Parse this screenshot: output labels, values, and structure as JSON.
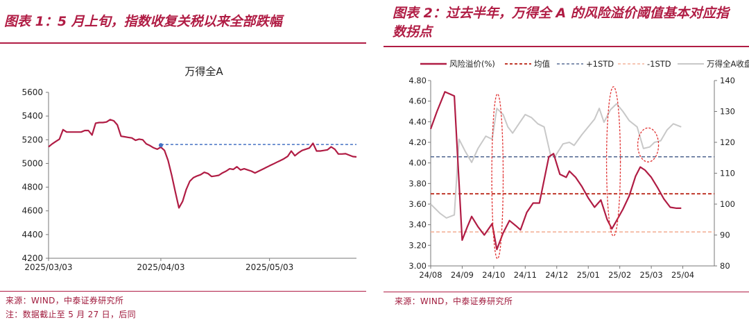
{
  "left": {
    "figure_title": "图表 1：5 月上旬，指数收复关税以来全部跌幅",
    "source": "来源：WIND，中泰证券研究所",
    "note": "注：数据截止至 5 月 27 日，后同",
    "colors": {
      "line": "#b01c44",
      "reference": "#4472c4",
      "accent": "#b01c44"
    }
  },
  "right": {
    "figure_title": "图表 2：过去半年，万得全 A 的风险溢价阈值基本对应指数拐点",
    "source": "来源：WIND，中泰证券研究所",
    "colors": {
      "risk": "#b01c44",
      "mean": "#c0392b",
      "plus_std": "#5a6f96",
      "minus_std": "#f4b39a",
      "index": "#c8c8c8",
      "ellipse": "#e03030"
    }
  },
  "chart_data": [
    {
      "type": "line",
      "title": "万得全A",
      "xlabel": "",
      "ylabel": "",
      "ylim": [
        4200,
        5600
      ],
      "y_ticks": [
        "4200",
        "4400",
        "4600",
        "4800",
        "5000",
        "5200",
        "5400",
        "5600"
      ],
      "x_ticks": [
        "2025/03/03",
        "2025/04/03",
        "2025/05/03"
      ],
      "x_tick_days": [
        0,
        31,
        61
      ],
      "xlim_days": [
        0,
        85
      ],
      "grid": false,
      "series": [
        {
          "values_by_day": [
            [
              0,
              5140
            ],
            [
              1,
              5165
            ],
            [
              2,
              5185
            ],
            [
              3,
              5205
            ],
            [
              4,
              5285
            ],
            [
              5,
              5265
            ],
            [
              6,
              5265
            ],
            [
              7,
              5265
            ],
            [
              8,
              5265
            ],
            [
              9,
              5265
            ],
            [
              10,
              5278
            ],
            [
              11,
              5278
            ],
            [
              12,
              5240
            ],
            [
              13,
              5340
            ],
            [
              14,
              5345
            ],
            [
              15,
              5345
            ],
            [
              16,
              5350
            ],
            [
              17,
              5370
            ],
            [
              18,
              5360
            ],
            [
              19,
              5325
            ],
            [
              20,
              5230
            ],
            [
              21,
              5225
            ],
            [
              22,
              5220
            ],
            [
              23,
              5215
            ],
            [
              24,
              5195
            ],
            [
              25,
              5205
            ],
            [
              26,
              5200
            ],
            [
              27,
              5165
            ],
            [
              28,
              5150
            ],
            [
              29,
              5132
            ],
            [
              30,
              5120
            ],
            [
              31,
              5138
            ],
            [
              32,
              5110
            ],
            [
              33,
              5025
            ],
            [
              34,
              4900
            ],
            [
              35,
              4760
            ],
            [
              36,
              4625
            ],
            [
              37,
              4680
            ],
            [
              38,
              4780
            ],
            [
              39,
              4850
            ],
            [
              40,
              4880
            ],
            [
              41,
              4895
            ],
            [
              42,
              4905
            ],
            [
              43,
              4925
            ],
            [
              44,
              4915
            ],
            [
              45,
              4890
            ],
            [
              46,
              4895
            ],
            [
              47,
              4900
            ],
            [
              48,
              4920
            ],
            [
              49,
              4935
            ],
            [
              50,
              4955
            ],
            [
              51,
              4950
            ],
            [
              52,
              4972
            ],
            [
              53,
              4945
            ],
            [
              54,
              4955
            ],
            [
              55,
              4945
            ],
            [
              56,
              4935
            ],
            [
              57,
              4920
            ],
            [
              58,
              4935
            ],
            [
              59,
              4950
            ],
            [
              60,
              4965
            ],
            [
              61,
              4980
            ],
            [
              62,
              4995
            ],
            [
              63,
              5010
            ],
            [
              64,
              5025
            ],
            [
              65,
              5040
            ],
            [
              66,
              5060
            ],
            [
              67,
              5105
            ],
            [
              68,
              5065
            ],
            [
              69,
              5090
            ],
            [
              70,
              5110
            ],
            [
              71,
              5120
            ],
            [
              72,
              5130
            ],
            [
              73,
              5170
            ],
            [
              74,
              5105
            ],
            [
              75,
              5105
            ],
            [
              76,
              5110
            ],
            [
              77,
              5115
            ],
            [
              78,
              5140
            ],
            [
              79,
              5120
            ],
            [
              80,
              5080
            ],
            [
              81,
              5080
            ],
            [
              82,
              5082
            ],
            [
              83,
              5070
            ],
            [
              84,
              5058
            ],
            [
              85,
              5055
            ]
          ]
        },
        {
          "name": "reference",
          "start_day": 31,
          "end_day": 85,
          "value": 5160
        }
      ]
    },
    {
      "type": "line",
      "title": "",
      "ylim": [
        3.0,
        4.8
      ],
      "y2lim": [
        80,
        140
      ],
      "y_ticks": [
        "3.00",
        "3.20",
        "3.40",
        "3.60",
        "3.80",
        "4.00",
        "4.20",
        "4.40",
        "4.60",
        "4.80"
      ],
      "y2_ticks": [
        "80",
        "90",
        "100",
        "110",
        "120",
        "130",
        "140"
      ],
      "x_ticks": [
        "24/08",
        "24/09",
        "24/10",
        "24/11",
        "24/12",
        "25/01",
        "25/02",
        "25/03",
        "25/04"
      ],
      "x_tick_pos": [
        0,
        1,
        2,
        3,
        4,
        5,
        6,
        7,
        8
      ],
      "xlim": [
        0,
        9.0
      ],
      "grid": false,
      "legend": [
        "风险溢价(%)",
        "均值",
        "+1STD",
        "-1STD",
        "万得全A收盘价"
      ],
      "legend_position": "top",
      "series": [
        {
          "name": "风险溢价(%)",
          "axis": "left",
          "points": [
            [
              0,
              4.33
            ],
            [
              0.2,
              4.5
            ],
            [
              0.45,
              4.69
            ],
            [
              0.75,
              4.65
            ],
            [
              1.0,
              3.25
            ],
            [
              1.15,
              3.37
            ],
            [
              1.3,
              3.48
            ],
            [
              1.5,
              3.38
            ],
            [
              1.7,
              3.3
            ],
            [
              1.95,
              3.41
            ],
            [
              2.1,
              3.16
            ],
            [
              2.3,
              3.32
            ],
            [
              2.5,
              3.44
            ],
            [
              2.7,
              3.39
            ],
            [
              2.85,
              3.35
            ],
            [
              3.05,
              3.52
            ],
            [
              3.25,
              3.61
            ],
            [
              3.45,
              3.61
            ],
            [
              3.75,
              4.06
            ],
            [
              3.9,
              4.09
            ],
            [
              4.1,
              3.89
            ],
            [
              4.3,
              3.86
            ],
            [
              4.4,
              3.92
            ],
            [
              4.6,
              3.86
            ],
            [
              4.8,
              3.77
            ],
            [
              5.0,
              3.66
            ],
            [
              5.2,
              3.57
            ],
            [
              5.4,
              3.64
            ],
            [
              5.6,
              3.45
            ],
            [
              5.75,
              3.36
            ],
            [
              5.9,
              3.44
            ],
            [
              6.1,
              3.55
            ],
            [
              6.3,
              3.68
            ],
            [
              6.5,
              3.87
            ],
            [
              6.65,
              3.96
            ],
            [
              6.8,
              3.93
            ],
            [
              7.0,
              3.86
            ],
            [
              7.2,
              3.76
            ],
            [
              7.4,
              3.65
            ],
            [
              7.6,
              3.57
            ],
            [
              7.8,
              3.56
            ],
            [
              7.95,
              3.56
            ]
          ]
        },
        {
          "name": "均值",
          "axis": "left",
          "value": 3.7
        },
        {
          "name": "+1STD",
          "axis": "left",
          "value": 4.06
        },
        {
          "name": "-1STD",
          "axis": "left",
          "value": 3.33
        },
        {
          "name": "万得全A收盘价",
          "axis": "right",
          "points": [
            [
              0,
              100
            ],
            [
              0.3,
              97
            ],
            [
              0.5,
              95.5
            ],
            [
              0.75,
              96.5
            ],
            [
              0.9,
              121
            ],
            [
              1.1,
              117
            ],
            [
              1.3,
              113.5
            ],
            [
              1.5,
              118
            ],
            [
              1.75,
              122
            ],
            [
              1.95,
              121
            ],
            [
              2.1,
              131
            ],
            [
              2.3,
              129
            ],
            [
              2.45,
              125
            ],
            [
              2.6,
              123
            ],
            [
              2.8,
              126
            ],
            [
              3.0,
              129
            ],
            [
              3.2,
              128
            ],
            [
              3.4,
              126
            ],
            [
              3.6,
              125
            ],
            [
              3.8,
              116
            ],
            [
              3.95,
              115.5
            ],
            [
              4.2,
              119.5
            ],
            [
              4.4,
              120
            ],
            [
              4.55,
              119
            ],
            [
              4.8,
              122.5
            ],
            [
              5.0,
              125
            ],
            [
              5.2,
              127.5
            ],
            [
              5.35,
              131
            ],
            [
              5.5,
              126.5
            ],
            [
              5.7,
              130.5
            ],
            [
              5.9,
              132.5
            ],
            [
              6.1,
              130
            ],
            [
              6.3,
              127
            ],
            [
              6.55,
              125
            ],
            [
              6.75,
              118
            ],
            [
              6.95,
              118.5
            ],
            [
              7.1,
              120
            ],
            [
              7.3,
              120.5
            ],
            [
              7.5,
              124
            ],
            [
              7.7,
              126
            ],
            [
              7.95,
              125
            ]
          ]
        }
      ]
    }
  ]
}
